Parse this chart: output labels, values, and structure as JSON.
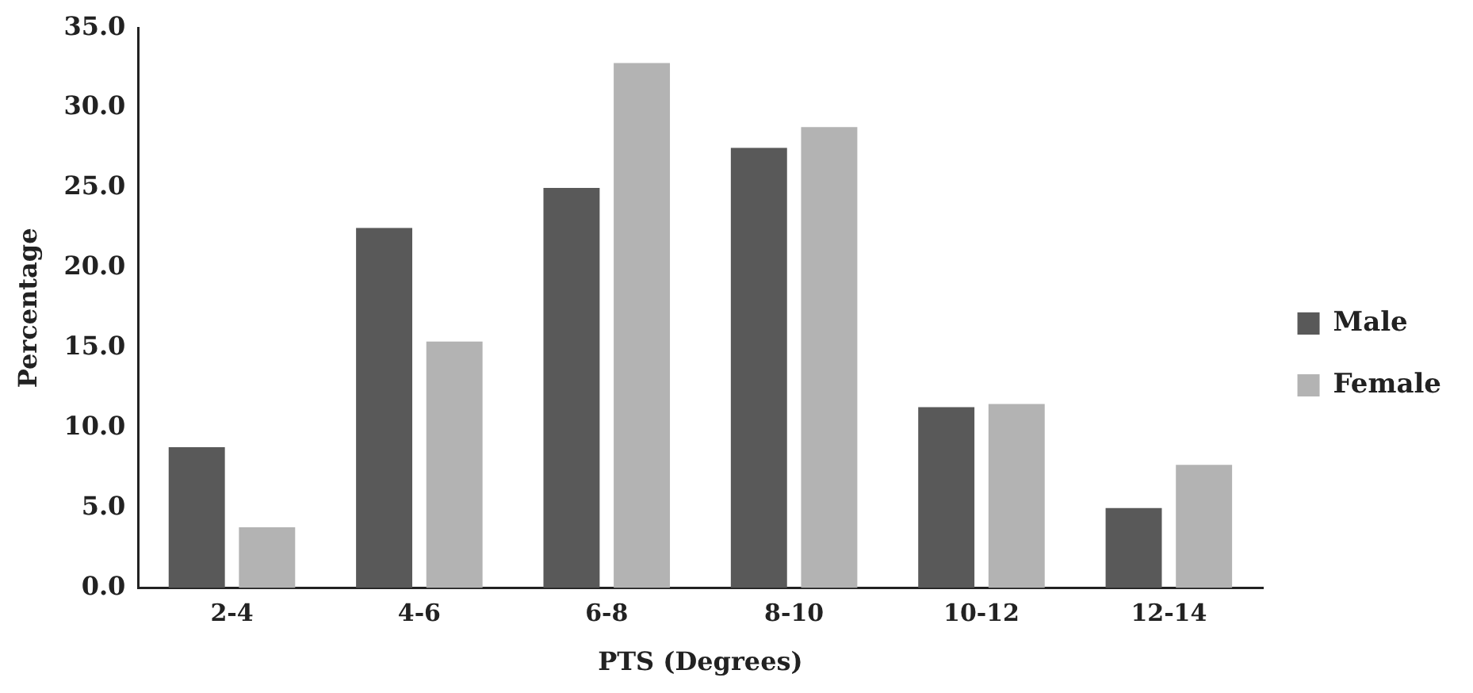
{
  "chart_data": {
    "type": "bar",
    "xlabel": "PTS (Degrees)",
    "ylabel": "Percentage",
    "categories": [
      "2-4",
      "4-6",
      "6-8",
      "8-10",
      "10-12",
      "12-14"
    ],
    "series": [
      {
        "name": "Male",
        "color": "#595959",
        "values": [
          8.8,
          22.5,
          25.0,
          27.5,
          11.3,
          5.0
        ]
      },
      {
        "name": "Female",
        "color": "#b3b3b3",
        "values": [
          3.8,
          15.4,
          32.8,
          28.8,
          11.5,
          7.7
        ]
      }
    ],
    "ylim": [
      0,
      35
    ],
    "yticks": [
      {
        "value": 0,
        "label": "0.0"
      },
      {
        "value": 5,
        "label": "5.0"
      },
      {
        "value": 10,
        "label": "10.0"
      },
      {
        "value": 15,
        "label": "15.0"
      },
      {
        "value": 20,
        "label": "20.0"
      },
      {
        "value": 25,
        "label": "25.0"
      },
      {
        "value": 30,
        "label": "30.0"
      },
      {
        "value": 35,
        "label": "35.0"
      }
    ],
    "grid": false,
    "legend": "right"
  }
}
